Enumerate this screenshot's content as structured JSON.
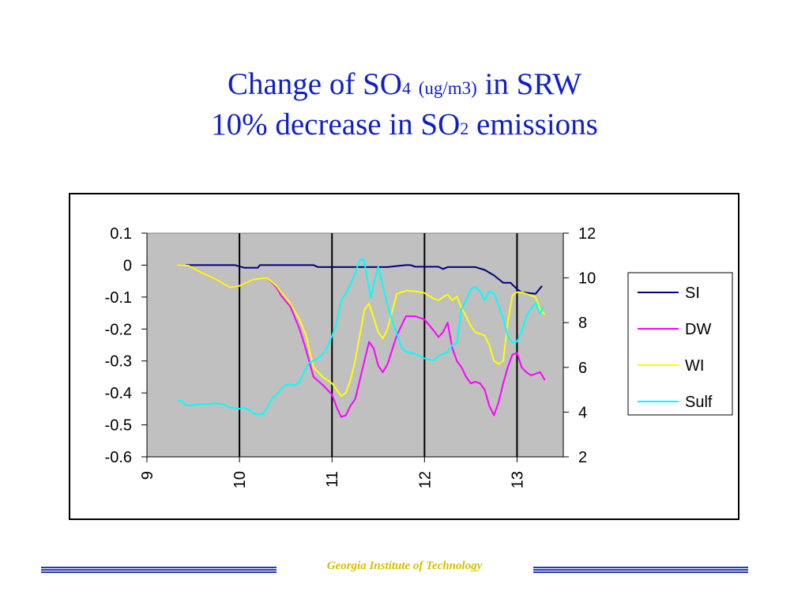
{
  "slide": {
    "title_line1_a": "Change of SO",
    "title_line1_sub": "4",
    "title_line1_unit": "(ug/m3)",
    "title_line1_b": "in SRW",
    "title_line2_a": "10% decrease in SO",
    "title_line2_sub": "2",
    "title_line2_b": "emissions",
    "footer": "Georgia Institute of Technology",
    "colors": {
      "title": "#1020c8",
      "footer": "#d2c000",
      "rule": "#2438b8"
    }
  },
  "chart_data": {
    "type": "line",
    "title": "",
    "xlabel": "",
    "ylabel": "",
    "y2label": "",
    "xlim": [
      9,
      13.5
    ],
    "ylim": [
      -0.6,
      0.1
    ],
    "y2lim": [
      2,
      12
    ],
    "x_ticks": [
      "9",
      "10",
      "11",
      "12",
      "13"
    ],
    "y_ticks": [
      "0.1",
      "0",
      "-0.1",
      "-0.2",
      "-0.3",
      "-0.4",
      "-0.5",
      "-0.6"
    ],
    "y2_ticks": [
      "12",
      "10",
      "8",
      "6",
      "4",
      "2"
    ],
    "grid": "vertical lines at x = 10, 11, 12, 13",
    "plot_background": "#c0c0c0",
    "legend_position": "right",
    "series": [
      {
        "name": "SI",
        "axis": "left",
        "color": "#000080",
        "x": [
          9.42,
          9.95,
          10.05,
          10.2,
          10.22,
          10.8,
          10.85,
          11.6,
          11.8,
          11.85,
          11.9,
          12.15,
          12.2,
          12.25,
          12.55,
          12.65,
          12.75,
          12.85,
          12.93,
          13.0,
          13.05,
          13.2,
          13.27
        ],
        "y": [
          0.0,
          0.0,
          -0.008,
          -0.008,
          0.0,
          0.0,
          -0.006,
          -0.006,
          0.0,
          0.0,
          -0.005,
          -0.005,
          -0.012,
          -0.006,
          -0.006,
          -0.015,
          -0.032,
          -0.055,
          -0.055,
          -0.075,
          -0.085,
          -0.09,
          -0.065
        ]
      },
      {
        "name": "DW",
        "axis": "left",
        "color": "#ff00ff",
        "x": [
          9.33,
          9.45,
          9.6,
          9.75,
          9.9,
          10.0,
          10.15,
          10.3,
          10.4,
          10.45,
          10.55,
          10.65,
          10.72,
          10.8,
          10.9,
          11.0,
          11.05,
          11.1,
          11.15,
          11.2,
          11.25,
          11.3,
          11.35,
          11.4,
          11.45,
          11.5,
          11.55,
          11.6,
          11.7,
          11.8,
          11.9,
          12.0,
          12.1,
          12.15,
          12.2,
          12.25,
          12.3,
          12.35,
          12.4,
          12.45,
          12.5,
          12.55,
          12.6,
          12.65,
          12.7,
          12.75,
          12.8,
          12.85,
          12.9,
          12.95,
          13.0,
          13.05,
          13.1,
          13.15,
          13.2,
          13.25,
          13.3
        ],
        "y": [
          0.0,
          -0.002,
          -0.025,
          -0.045,
          -0.07,
          -0.065,
          -0.045,
          -0.04,
          -0.07,
          -0.095,
          -0.13,
          -0.2,
          -0.265,
          -0.35,
          -0.375,
          -0.405,
          -0.445,
          -0.475,
          -0.47,
          -0.44,
          -0.42,
          -0.36,
          -0.3,
          -0.24,
          -0.26,
          -0.315,
          -0.335,
          -0.31,
          -0.22,
          -0.16,
          -0.16,
          -0.17,
          -0.205,
          -0.225,
          -0.21,
          -0.18,
          -0.26,
          -0.3,
          -0.32,
          -0.35,
          -0.37,
          -0.365,
          -0.37,
          -0.39,
          -0.44,
          -0.47,
          -0.43,
          -0.37,
          -0.32,
          -0.28,
          -0.275,
          -0.32,
          -0.335,
          -0.345,
          -0.34,
          -0.335,
          -0.36
        ]
      },
      {
        "name": "WI",
        "axis": "left",
        "color": "#ffff00",
        "x": [
          9.33,
          9.45,
          9.6,
          9.75,
          9.9,
          10.0,
          10.15,
          10.3,
          10.4,
          10.45,
          10.55,
          10.65,
          10.72,
          10.8,
          10.9,
          11.0,
          11.05,
          11.1,
          11.15,
          11.2,
          11.25,
          11.3,
          11.35,
          11.4,
          11.45,
          11.5,
          11.55,
          11.6,
          11.7,
          11.8,
          11.9,
          12.0,
          12.1,
          12.15,
          12.2,
          12.25,
          12.3,
          12.35,
          12.4,
          12.45,
          12.5,
          12.55,
          12.6,
          12.65,
          12.7,
          12.75,
          12.8,
          12.85,
          12.9,
          12.95,
          13.0,
          13.05,
          13.1,
          13.15,
          13.2,
          13.25,
          13.3
        ],
        "y": [
          0.0,
          -0.002,
          -0.025,
          -0.045,
          -0.07,
          -0.065,
          -0.045,
          -0.04,
          -0.065,
          -0.085,
          -0.12,
          -0.17,
          -0.22,
          -0.32,
          -0.35,
          -0.37,
          -0.39,
          -0.41,
          -0.4,
          -0.36,
          -0.3,
          -0.22,
          -0.14,
          -0.12,
          -0.165,
          -0.21,
          -0.23,
          -0.2,
          -0.09,
          -0.08,
          -0.082,
          -0.087,
          -0.105,
          -0.11,
          -0.1,
          -0.092,
          -0.11,
          -0.098,
          -0.135,
          -0.16,
          -0.19,
          -0.21,
          -0.215,
          -0.22,
          -0.25,
          -0.3,
          -0.31,
          -0.3,
          -0.18,
          -0.095,
          -0.085,
          -0.085,
          -0.09,
          -0.095,
          -0.1,
          -0.14,
          -0.155
        ]
      },
      {
        "name": "Sulf",
        "axis": "right",
        "color": "#00ffff",
        "x": [
          9.33,
          9.38,
          9.42,
          9.48,
          9.55,
          9.65,
          9.75,
          9.82,
          9.9,
          10.0,
          10.05,
          10.1,
          10.15,
          10.18,
          10.25,
          10.3,
          10.35,
          10.4,
          10.45,
          10.5,
          10.55,
          10.6,
          10.65,
          10.7,
          10.75,
          10.8,
          10.85,
          10.9,
          10.95,
          11.0,
          11.05,
          11.1,
          11.15,
          11.2,
          11.25,
          11.3,
          11.33,
          11.35,
          11.38,
          11.42,
          11.45,
          11.5,
          11.55,
          11.6,
          11.65,
          11.7,
          11.75,
          11.8,
          11.9,
          12.0,
          12.1,
          12.15,
          12.2,
          12.25,
          12.3,
          12.35,
          12.4,
          12.45,
          12.5,
          12.55,
          12.6,
          12.65,
          12.7,
          12.75,
          12.8,
          12.85,
          12.9,
          12.95,
          13.0,
          13.05,
          13.1,
          13.15,
          13.2,
          13.25,
          13.28
        ],
        "y": [
          4.5,
          4.5,
          4.3,
          4.3,
          4.35,
          4.35,
          4.4,
          4.35,
          4.2,
          4.15,
          4.2,
          4.1,
          3.95,
          3.9,
          3.9,
          4.2,
          4.6,
          4.8,
          5.05,
          5.2,
          5.25,
          5.2,
          5.35,
          5.8,
          6.2,
          6.3,
          6.4,
          6.6,
          6.9,
          7.4,
          8.0,
          9.0,
          9.3,
          9.7,
          10.2,
          10.8,
          10.85,
          10.7,
          10.0,
          9.1,
          9.7,
          10.5,
          9.6,
          8.8,
          8.1,
          7.5,
          6.9,
          6.7,
          6.6,
          6.4,
          6.3,
          6.5,
          6.6,
          6.7,
          7.0,
          7.1,
          8.6,
          9.0,
          9.5,
          9.6,
          9.4,
          9.0,
          9.4,
          9.3,
          8.8,
          8.2,
          7.4,
          7.1,
          7.15,
          7.6,
          8.3,
          8.6,
          8.9,
          8.4,
          8.7
        ]
      }
    ]
  }
}
